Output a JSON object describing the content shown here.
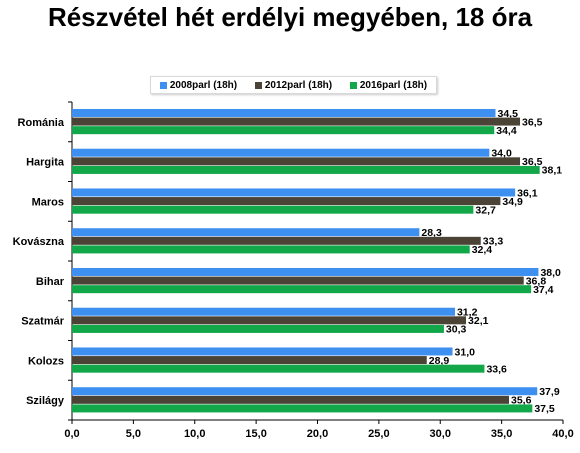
{
  "chart_data": {
    "type": "bar",
    "orientation": "horizontal",
    "title": "Részvétel hét erdélyi megyében, 18 óra",
    "categories": [
      "Románia",
      "Hargita",
      "Maros",
      "Kovászna",
      "Bihar",
      "Szatmár",
      "Kolozs",
      "Szilágy"
    ],
    "category_labels": [
      "Románia",
      "Hargita",
      "Maros",
      "Kovászna",
      "Bihar",
      "Szatmár",
      "Kolozs",
      "Szilágy"
    ],
    "series": [
      {
        "name": "2008parl (18h)",
        "color": "#3d8ff0",
        "values": [
          34.5,
          34.0,
          36.1,
          28.3,
          38.0,
          31.2,
          31.0,
          37.9
        ],
        "labels": [
          "34,5",
          "34,0",
          "36,1",
          "28,3",
          "38,0",
          "31,2",
          "31,0",
          "37,9"
        ]
      },
      {
        "name": "2012parl (18h)",
        "color": "#4a4336",
        "values": [
          36.5,
          36.5,
          34.9,
          33.3,
          36.8,
          32.1,
          28.9,
          35.6
        ],
        "labels": [
          "36,5",
          "36,5",
          "34,9",
          "33,3",
          "36,8",
          "32,1",
          "28,9",
          "35,6"
        ]
      },
      {
        "name": "2016parl (18h)",
        "color": "#12a84a",
        "values": [
          34.4,
          38.1,
          32.7,
          32.4,
          37.4,
          30.3,
          33.6,
          37.5
        ],
        "labels": [
          "34,4",
          "38,1",
          "32,7",
          "32,4",
          "37,4",
          "30,3",
          "33,6",
          "37,5"
        ]
      }
    ],
    "xlim": [
      0,
      40
    ],
    "xticks": [
      0,
      5,
      10,
      15,
      20,
      25,
      30,
      35,
      40
    ],
    "xtick_labels": [
      "0,0",
      "5,0",
      "10,0",
      "15,0",
      "20,0",
      "25,0",
      "30,0",
      "35,0",
      "40,0"
    ],
    "xlabel": "",
    "ylabel": "",
    "legend_position": "top",
    "grid": false
  }
}
